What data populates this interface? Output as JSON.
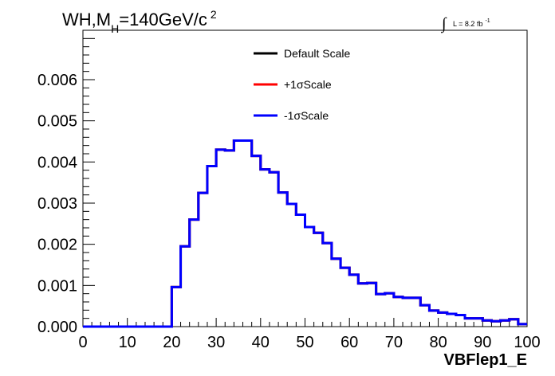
{
  "chart_data": {
    "type": "line",
    "title": {
      "main": "WH,M",
      "subscript": "H",
      "rest": "=140GeV/c",
      "superscript": "2"
    },
    "luminosity": {
      "integral_sign": "∫",
      "text": "L = 8.2 fb",
      "superscript": "-1"
    },
    "xlabel": "VBFlep1_E",
    "ylabel": "",
    "xlim": [
      0,
      100
    ],
    "ylim": [
      0,
      0.0072
    ],
    "x_ticks": [
      0,
      10,
      20,
      30,
      40,
      50,
      60,
      70,
      80,
      90,
      100
    ],
    "x_tick_labels": [
      "0",
      "10",
      "20",
      "30",
      "40",
      "50",
      "60",
      "70",
      "80",
      "90",
      "100"
    ],
    "y_ticks": [
      0,
      0.001,
      0.002,
      0.003,
      0.004,
      0.005,
      0.006
    ],
    "y_tick_labels": [
      "0.000",
      "0.001",
      "0.002",
      "0.003",
      "0.004",
      "0.005",
      "0.006"
    ],
    "bin_edges": [
      0,
      2,
      4,
      6,
      8,
      10,
      12,
      14,
      16,
      18,
      20,
      22,
      24,
      26,
      28,
      30,
      32,
      34,
      36,
      38,
      40,
      42,
      44,
      46,
      48,
      50,
      52,
      54,
      56,
      58,
      60,
      62,
      64,
      66,
      68,
      70,
      72,
      74,
      76,
      78,
      80,
      82,
      84,
      86,
      88,
      90,
      92,
      94,
      96,
      98,
      100
    ],
    "legend": {
      "placement": "top-center",
      "entries": [
        {
          "label": "Default Scale",
          "color": "#000000"
        },
        {
          "label": "+1σScale",
          "color": "#ff0000"
        },
        {
          "label": "-1σScale",
          "color": "#0000ff"
        }
      ]
    },
    "series": [
      {
        "name": "Default Scale",
        "color": "#000000",
        "values": [
          0,
          0,
          0,
          0,
          0,
          0,
          0,
          0,
          0,
          0,
          0.00096,
          0.00195,
          0.0026,
          0.00325,
          0.0039,
          0.0043,
          0.00428,
          0.00452,
          0.00452,
          0.00415,
          0.00382,
          0.00375,
          0.00326,
          0.00298,
          0.00272,
          0.00242,
          0.00228,
          0.00203,
          0.00165,
          0.00143,
          0.00126,
          0.00105,
          0.00106,
          0.00079,
          0.00081,
          0.00072,
          0.0007,
          0.0007,
          0.00052,
          0.00039,
          0.00034,
          0.00031,
          0.00028,
          0.0002,
          0.0002,
          0.00015,
          0.00013,
          0.00015,
          0.00018,
          6e-05
        ]
      },
      {
        "name": "+1σScale",
        "color": "#ff0000",
        "values": [
          0,
          0,
          0,
          0,
          0,
          0,
          0,
          0,
          0,
          0,
          0.00096,
          0.00195,
          0.0026,
          0.00325,
          0.0039,
          0.0043,
          0.00428,
          0.00452,
          0.00452,
          0.00415,
          0.00382,
          0.00375,
          0.00326,
          0.00298,
          0.00272,
          0.00242,
          0.00228,
          0.00203,
          0.00165,
          0.00143,
          0.00126,
          0.00105,
          0.00106,
          0.00079,
          0.00081,
          0.00072,
          0.0007,
          0.0007,
          0.00052,
          0.00039,
          0.00034,
          0.00031,
          0.00028,
          0.0002,
          0.0002,
          0.00015,
          0.00013,
          0.00015,
          0.00018,
          6e-05
        ]
      },
      {
        "name": "-1σScale",
        "color": "#0000ff",
        "values": [
          0,
          0,
          0,
          0,
          0,
          0,
          0,
          0,
          0,
          0,
          0.00096,
          0.00195,
          0.0026,
          0.00325,
          0.0039,
          0.0043,
          0.00428,
          0.00452,
          0.00452,
          0.00415,
          0.00382,
          0.00375,
          0.00326,
          0.00298,
          0.00272,
          0.00242,
          0.00228,
          0.00203,
          0.00165,
          0.00143,
          0.00126,
          0.00105,
          0.00106,
          0.00079,
          0.00081,
          0.00072,
          0.0007,
          0.0007,
          0.00052,
          0.00039,
          0.00034,
          0.00031,
          0.00028,
          0.0002,
          0.0002,
          0.00015,
          0.00013,
          0.00015,
          0.00018,
          6e-05
        ]
      }
    ]
  }
}
